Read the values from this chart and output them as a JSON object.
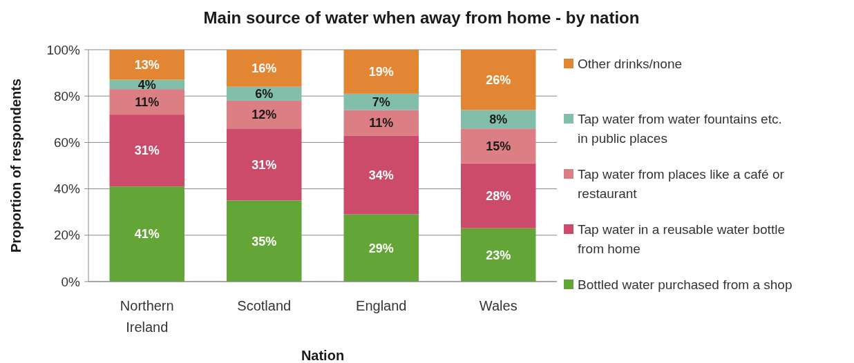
{
  "chart_data": {
    "type": "bar",
    "stacked": true,
    "title": "Main source of water when away from home - by nation",
    "xlabel": "Nation",
    "ylabel": "Proportion of respondents",
    "categories": [
      "Northern Ireland",
      "Scotland",
      "England",
      "Wales"
    ],
    "ylim": [
      0,
      100
    ],
    "yticks": [
      {
        "value": 0,
        "label": "0%"
      },
      {
        "value": 20,
        "label": "20%"
      },
      {
        "value": 40,
        "label": "40%"
      },
      {
        "value": 60,
        "label": "60%"
      },
      {
        "value": 80,
        "label": "80%"
      },
      {
        "value": 100,
        "label": "100%"
      }
    ],
    "grid": "y",
    "legend": "right",
    "series": [
      {
        "name": "Bottled water purchased from a shop",
        "color": "#63a536",
        "values": [
          41,
          35,
          29,
          23
        ],
        "value_labels": [
          "41%",
          "35%",
          "29%",
          "23%"
        ]
      },
      {
        "name": "Tap water in a reusable water bottle from home",
        "color": "#cc4a6a",
        "values": [
          31,
          31,
          34,
          28
        ],
        "value_labels": [
          "31%",
          "31%",
          "34%",
          "28%"
        ]
      },
      {
        "name": "Tap water from places like a café or restaurant",
        "color": "#dc7f84",
        "values": [
          11,
          12,
          11,
          15
        ],
        "value_labels": [
          "11%",
          "12%",
          "11%",
          "15%"
        ]
      },
      {
        "name": "Tap water from water fountains etc. in public places",
        "color": "#82bfaa",
        "values": [
          4,
          6,
          7,
          8
        ],
        "value_labels": [
          "4%",
          "6%",
          "7%",
          "8%"
        ]
      },
      {
        "name": "Other drinks/none",
        "color": "#e38634",
        "values": [
          13,
          16,
          19,
          26
        ],
        "value_labels": [
          "13%",
          "16%",
          "19%",
          "26%"
        ]
      }
    ]
  }
}
